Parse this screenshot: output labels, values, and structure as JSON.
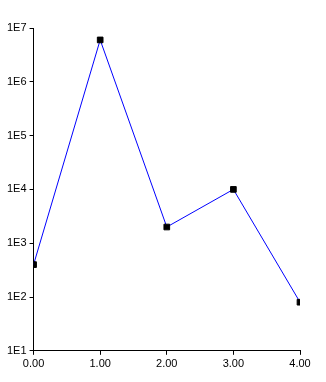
{
  "chart_data": {
    "type": "line",
    "x": [
      0,
      1,
      2,
      3,
      4
    ],
    "series": [
      {
        "color": "#0000ff",
        "marker": "square",
        "values": [
          400,
          6000000,
          2000,
          10000,
          80
        ]
      }
    ],
    "xlim": [
      0,
      4
    ],
    "xticks": [
      {
        "value": 0,
        "label": "0.00"
      },
      {
        "value": 1,
        "label": "1.00"
      },
      {
        "value": 2,
        "label": "2.00"
      },
      {
        "value": 3,
        "label": "3.00"
      },
      {
        "value": 4,
        "label": "4.00"
      }
    ],
    "ylim": [
      10,
      10000000
    ],
    "yticks": [
      {
        "value": 10,
        "label": "1E1"
      },
      {
        "value": 100,
        "label": "1E2"
      },
      {
        "value": 1000,
        "label": "1E3"
      },
      {
        "value": 10000,
        "label": "1E4"
      },
      {
        "value": 100000,
        "label": "1E5"
      },
      {
        "value": 1000000,
        "label": "1E6"
      },
      {
        "value": 10000000,
        "label": "1E7"
      }
    ],
    "log": "y",
    "grid": false
  }
}
